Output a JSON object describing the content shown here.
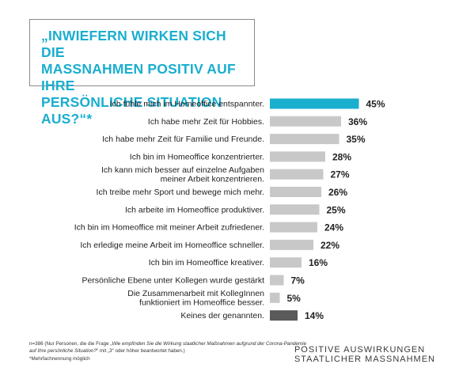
{
  "question_title": "„INWIEFERN WIRKEN SICH DIE\nMASSNAHMEN POSITIV AUF IHRE\nPERSÖNLICHE SITUATION AUS?“*",
  "footnote": {
    "line1_start": "n=386 (Nur Personen, die die Frage „",
    "line1_italic": "Wie empfinden Sie die Wirkung staatlicher Maßnahmen aufgrund der Corona-Pandemie auf Ihre persönliche Situation?",
    "line1_end": "“ mit „3“ oder höher beantwortet haben.)",
    "line2": "*Mehrfachnennung möglich"
  },
  "brand": {
    "line1": "POSITIVE AUSWIRKUNGEN",
    "line2": "STAATLICHER MASSNAHMEN"
  },
  "colors": {
    "highlight": "#1aaecf",
    "default_bar": "#c8c8c8",
    "none_bar": "#5a5a5a",
    "text": "#222222"
  },
  "chart_data": {
    "type": "bar",
    "orientation": "horizontal",
    "unit": "%",
    "categories": [
      "Ich fühle mich im Homeoffice entspannter.",
      "Ich habe mehr Zeit für Hobbies.",
      "Ich habe mehr Zeit für Familie und Freunde.",
      "Ich bin im Homeoffice konzentrierter.",
      "Ich kann mich besser auf einzelne Aufgaben\nmeiner Arbeit konzentrieren.",
      "Ich treibe mehr Sport und bewege mich mehr.",
      "Ich arbeite im Homeoffice produktiver.",
      "Ich bin im Homeoffice mit meiner Arbeit zufriedener.",
      "Ich erledige meine Arbeit im Homeoffice schneller.",
      "Ich bin im Homeoffice kreativer.",
      "Persönliche Ebene unter Kollegen wurde gestärkt",
      "Die Zusammenarbeit mit KollegInnen\nfunktioniert im Homeoffice besser.",
      "Keines der genannten."
    ],
    "values": [
      45,
      36,
      35,
      28,
      27,
      26,
      25,
      24,
      22,
      16,
      7,
      5,
      14
    ],
    "labels": [
      "45%",
      "36%",
      "35%",
      "28%",
      "27%",
      "26%",
      "25%",
      "24%",
      "22%",
      "16%",
      "7%",
      "5%",
      "14%"
    ],
    "bar_styles": [
      "highlight",
      "default",
      "default",
      "default",
      "default",
      "default",
      "default",
      "default",
      "default",
      "default",
      "default",
      "default",
      "none"
    ]
  }
}
